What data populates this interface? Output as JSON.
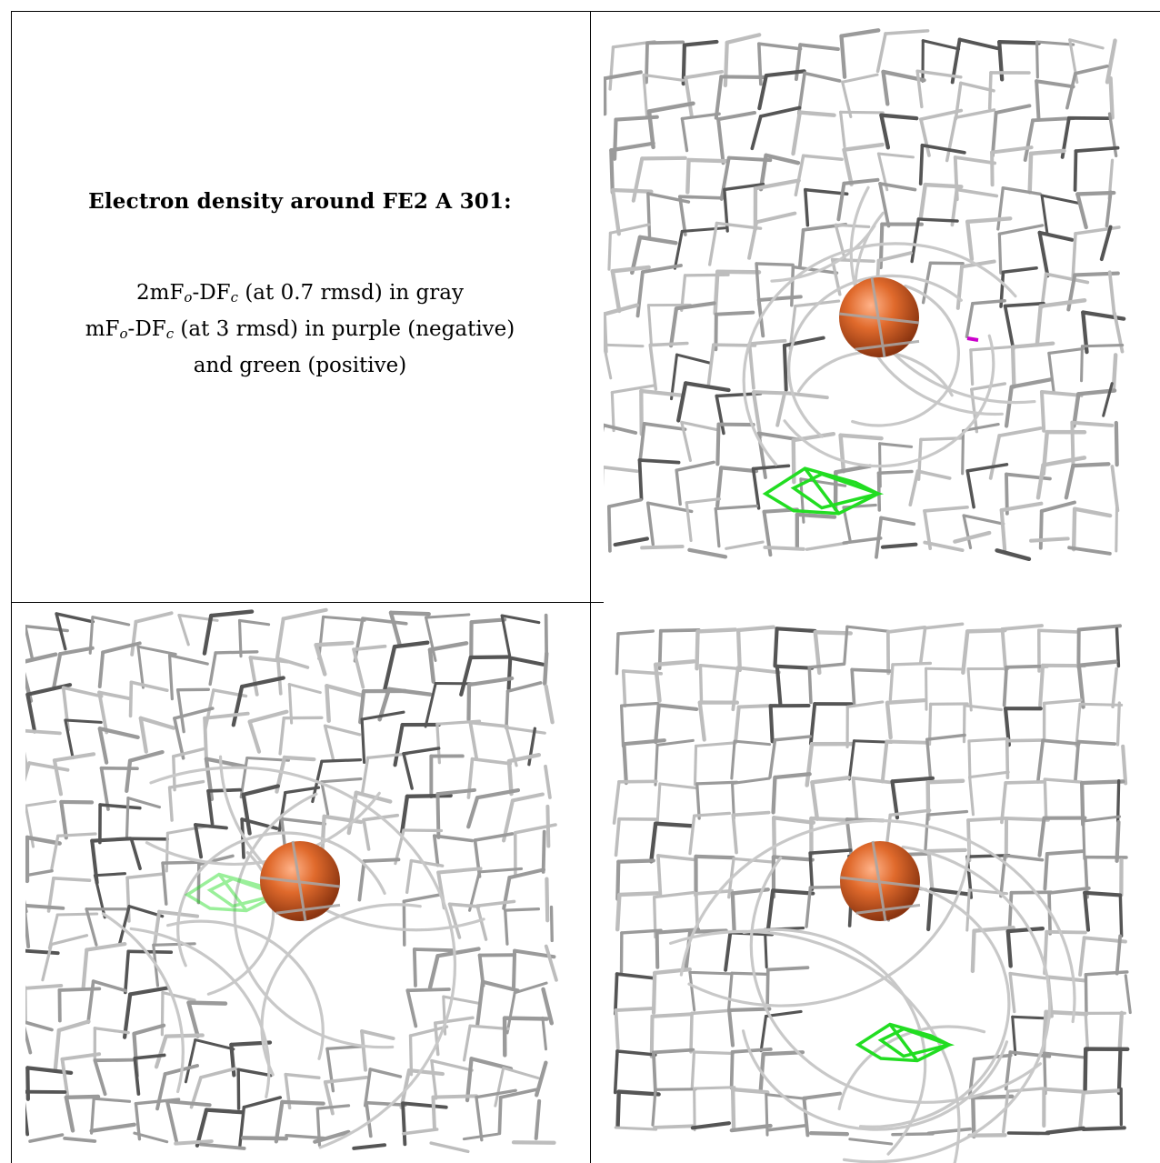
{
  "legend": {
    "title": "Electron density around FE2 A 301:",
    "line1": {
      "a": "2mF",
      "a_sub": "o",
      "b": "-DF",
      "b_sub": "c",
      "rest": " (at 0.7 rmsd) in gray"
    },
    "line2": {
      "a": "mF",
      "a_sub": "o",
      "b": "-DF",
      "b_sub": "c",
      "rest": " (at 3 rmsd) in purple (negative)"
    },
    "line3": "and green (positive)"
  },
  "colors": {
    "mesh_gray": "#9a9a9a",
    "mesh_dark": "#555555",
    "atom_orange": "#e06a2c",
    "positive_green": "#22dd22",
    "negative_purple": "#cc00cc"
  },
  "panels": [
    {
      "view": "top-right",
      "icon": "electron-density-mesh"
    },
    {
      "view": "bottom-left",
      "icon": "electron-density-mesh"
    },
    {
      "view": "bottom-right",
      "icon": "electron-density-mesh"
    }
  ]
}
